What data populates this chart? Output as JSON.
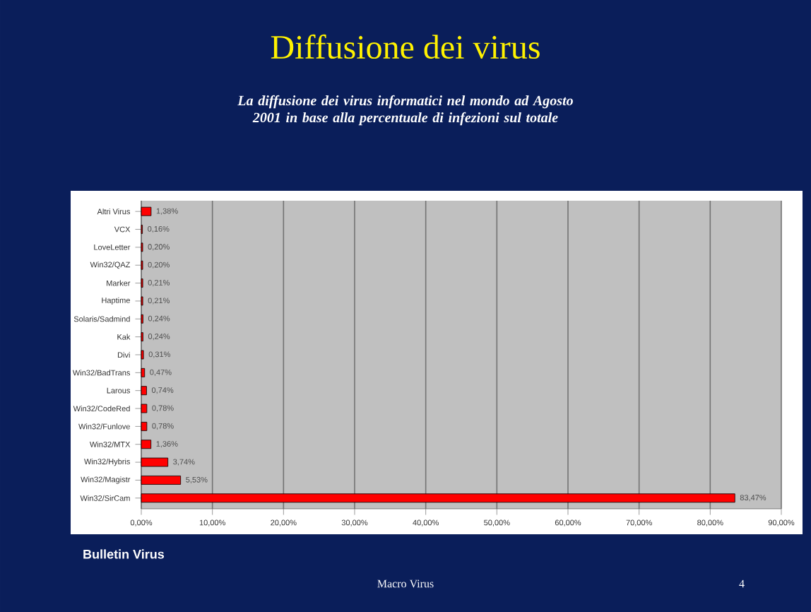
{
  "chart_data": {
    "type": "bar",
    "orientation": "horizontal",
    "title": "Diffusione dei virus",
    "subtitle": "La diffusione dei virus informatici nel mondo ad Agosto 2001 in base alla percentuale di infezioni sul totale",
    "categories": [
      "Altri Virus",
      "VCX",
      "LoveLetter",
      "Win32/QAZ",
      "Marker",
      "Haptime",
      "Solaris/Sadmind",
      "Kak",
      "Divi",
      "Win32/BadTrans",
      "Larous",
      "Win32/CodeRed",
      "Win32/Funlove",
      "Win32/MTX",
      "Win32/Hybris",
      "Win32/Magistr",
      "Win32/SirCam"
    ],
    "values": [
      1.38,
      0.16,
      0.2,
      0.2,
      0.21,
      0.21,
      0.24,
      0.24,
      0.31,
      0.47,
      0.74,
      0.78,
      0.78,
      1.36,
      3.74,
      5.53,
      83.47
    ],
    "value_labels": [
      "1,38%",
      "0,16%",
      "0,20%",
      "0,20%",
      "0,21%",
      "0,21%",
      "0,24%",
      "0,24%",
      "0,31%",
      "0,47%",
      "0,74%",
      "0,78%",
      "0,78%",
      "1,36%",
      "3,74%",
      "5,53%",
      "83,47%"
    ],
    "color": "#ff0000",
    "xlim": [
      0,
      90
    ],
    "xticks": [
      {
        "value": 0,
        "label": "0,00%"
      },
      {
        "value": 10,
        "label": "10,00%"
      },
      {
        "value": 20,
        "label": "20,00%"
      },
      {
        "value": 30,
        "label": "30,00%"
      },
      {
        "value": 40,
        "label": "40,00%"
      },
      {
        "value": 50,
        "label": "50,00%"
      },
      {
        "value": 60,
        "label": "60,00%"
      },
      {
        "value": 70,
        "label": "70,00%"
      },
      {
        "value": 80,
        "label": "80,00%"
      },
      {
        "value": 90,
        "label": "90,00%"
      }
    ],
    "grid": "x",
    "annotations": [
      "Bulletin Virus",
      "Macro Virus",
      "4"
    ]
  }
}
